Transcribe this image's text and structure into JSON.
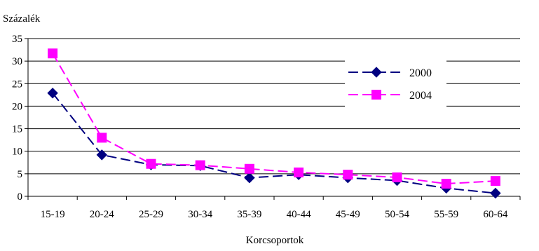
{
  "chart_data": {
    "type": "line",
    "title": "",
    "ylabel": "Százalék",
    "xlabel": "Korcsoportok",
    "ylim": [
      0,
      35
    ],
    "yticks": [
      0,
      5,
      10,
      15,
      20,
      25,
      30,
      35
    ],
    "grid": true,
    "legend_position": "right",
    "categories": [
      "15-19",
      "20-24",
      "25-29",
      "30-34",
      "35-39",
      "40-44",
      "45-49",
      "50-54",
      "55-59",
      "60-64"
    ],
    "series": [
      {
        "name": "2000",
        "color": "#000080",
        "marker": "diamond",
        "line_style": "dashed",
        "values": [
          22.9,
          9.2,
          7.0,
          6.8,
          4.1,
          4.8,
          4.1,
          3.5,
          1.8,
          0.7
        ]
      },
      {
        "name": "2004",
        "color": "#FF00FF",
        "marker": "square",
        "line_style": "dashed",
        "values": [
          31.7,
          13.0,
          7.2,
          6.9,
          6.1,
          5.3,
          4.8,
          4.2,
          2.8,
          3.4
        ]
      }
    ]
  }
}
